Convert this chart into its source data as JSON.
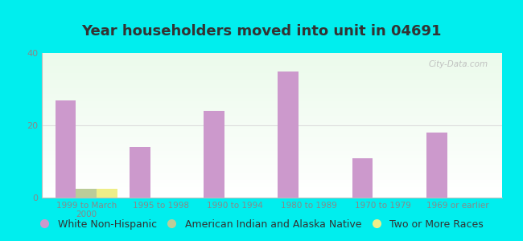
{
  "title": "Year householders moved into unit in 04691",
  "categories": [
    "1999 to March\n2000",
    "1995 to 1998",
    "1990 to 1994",
    "1980 to 1989",
    "1970 to 1979",
    "1969 or earlier"
  ],
  "series": [
    {
      "name": "White Non-Hispanic",
      "color": "#cc99cc",
      "values": [
        27,
        14,
        24,
        35,
        11,
        18
      ]
    },
    {
      "name": "American Indian and Alaska Native",
      "color": "#bbcc99",
      "values": [
        2.5,
        0,
        0,
        0,
        0,
        0
      ]
    },
    {
      "name": "Two or More Races",
      "color": "#eeee88",
      "values": [
        2.5,
        0,
        0,
        0,
        0,
        0
      ]
    }
  ],
  "ylim": [
    0,
    40
  ],
  "yticks": [
    0,
    20,
    40
  ],
  "bar_width": 0.28,
  "background_color": "#00eeee",
  "watermark": "City-Data.com",
  "title_fontsize": 13,
  "title_color": "#333333",
  "axis_label_color": "#888888",
  "legend_fontsize": 9,
  "grid_color": "#dddddd"
}
